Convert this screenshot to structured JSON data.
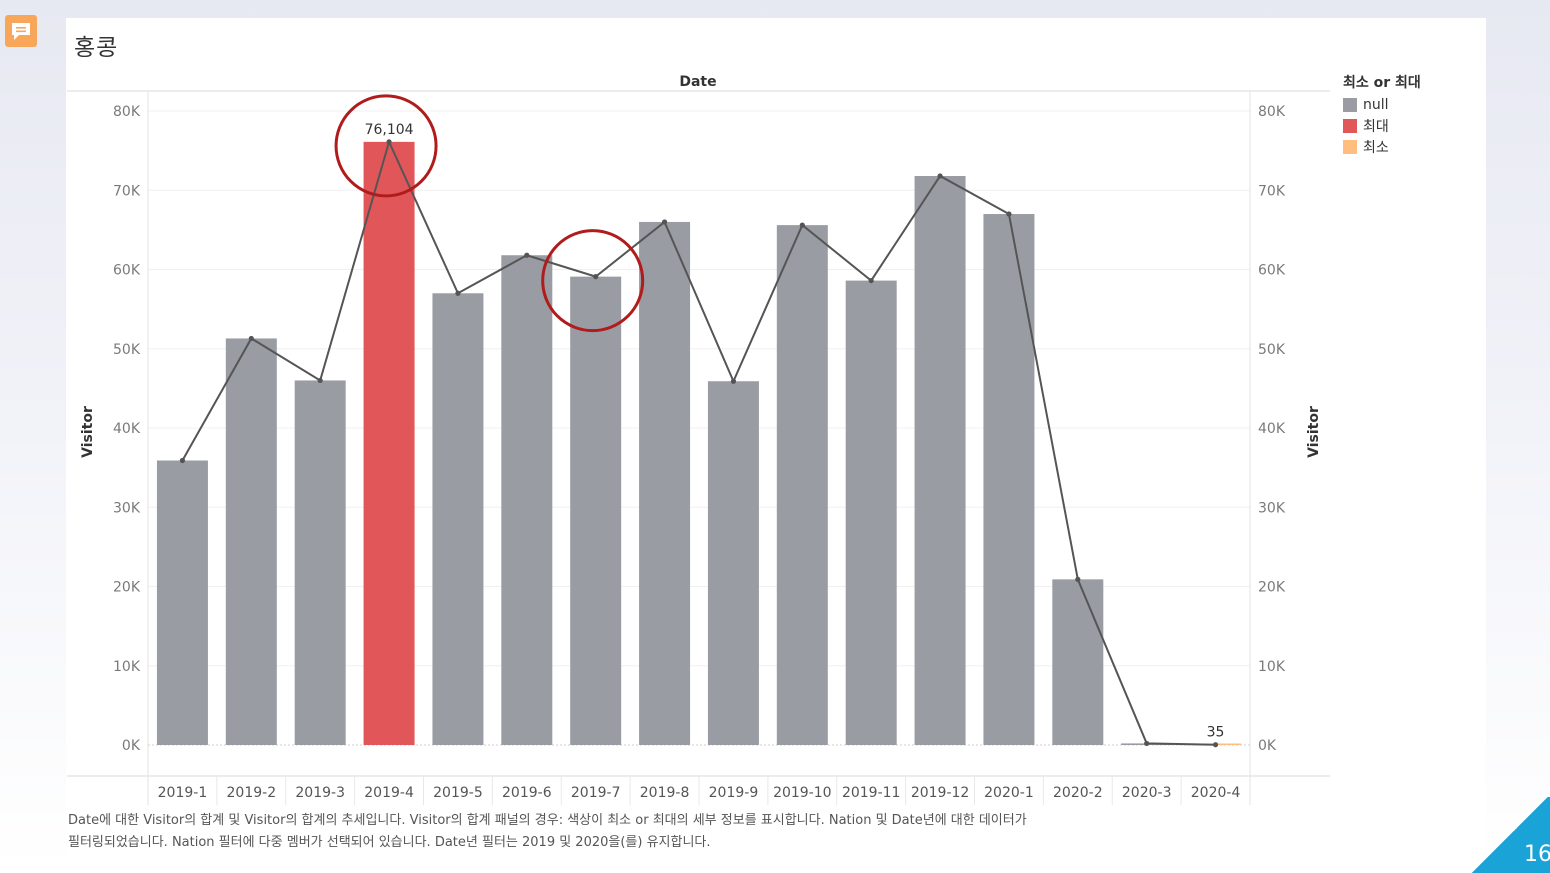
{
  "title": "홍콩",
  "page_number": "16",
  "caption_line1": "Date에 대한 Visitor의 합계 및 Visitor의 합계의 추세입니다. Visitor의 합계 패널의 경우: 색상이 최소 or 최대의 세부 정보를 표시합니다. Nation 및 Date년에 대한 데이터가",
  "caption_line2": "필터링되었습니다. Nation 필터에 다중 멤버가 선택되어 있습니다. Date년 필터는 2019 및 2020을(를) 유지합니다.",
  "legend": {
    "title": "최소 or 최대",
    "items": [
      {
        "label": "null",
        "color": "#999ca2"
      },
      {
        "label": "최대",
        "color": "#e15759"
      },
      {
        "label": "최소",
        "color": "#ffbe7d"
      }
    ]
  },
  "colors": {
    "line": "#555555",
    "highlight_circle": "#b01c1c",
    "badge": "#1aa3d6"
  },
  "icons": {
    "comment": "comment-icon"
  },
  "chart_data": {
    "type": "bar",
    "title": "",
    "xlabel": "Date",
    "ylabel": "Visitor",
    "ylabel_right": "Visitor",
    "ylim": [
      0,
      80000
    ],
    "y_ticks": [
      0,
      10000,
      20000,
      30000,
      40000,
      50000,
      60000,
      70000,
      80000
    ],
    "y_tick_labels": [
      "0K",
      "10K",
      "20K",
      "30K",
      "40K",
      "50K",
      "60K",
      "70K",
      "80K"
    ],
    "categories": [
      "2019-1",
      "2019-2",
      "2019-3",
      "2019-4",
      "2019-5",
      "2019-6",
      "2019-7",
      "2019-8",
      "2019-9",
      "2019-10",
      "2019-11",
      "2019-12",
      "2020-1",
      "2020-2",
      "2020-3",
      "2020-4"
    ],
    "series": [
      {
        "values": [
          35900,
          51300,
          46000,
          76104,
          57000,
          61800,
          59100,
          66000,
          45900,
          65600,
          58600,
          71800,
          67000,
          20900,
          200,
          35
        ],
        "color_groups": [
          "null",
          "null",
          "null",
          "최대",
          "null",
          "null",
          "null",
          "null",
          "null",
          "null",
          "null",
          "null",
          "null",
          "null",
          "null",
          "최소"
        ]
      }
    ],
    "line_overlay": true,
    "data_labels": [
      {
        "category": "2019-4",
        "text": "76,104"
      },
      {
        "category": "2020-4",
        "text": "35"
      }
    ],
    "annotations": [
      {
        "type": "circle",
        "category": "2019-4"
      },
      {
        "type": "circle",
        "category": "2019-7"
      }
    ],
    "grid": true,
    "legend_position": "right"
  }
}
